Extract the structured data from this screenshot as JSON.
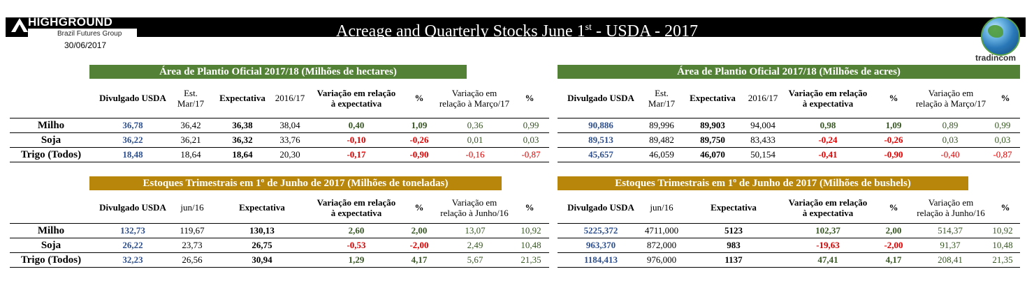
{
  "header": {
    "logo_text": "HIGHGROUND",
    "logo_sub": "Brazil Futures Group",
    "date": "30/06/2017",
    "title_main": "Acreage and Quarterly Stocks June 1",
    "title_sup": "st",
    "title_tail": " - USDA - 2017",
    "right_logo": "tradincom",
    "colors": {
      "bar": "#000000",
      "green": "#538135",
      "gold": "#b8860b",
      "blue": "#2e4f8e",
      "red": "#e00000"
    }
  },
  "rows": [
    "Milho",
    "Soja",
    "Trigo (Todos)"
  ],
  "area_hectares": {
    "title": "Área de Plantio Oficial 2017/18 (Milhões de hectares)",
    "headers": [
      "Divulgado USDA",
      "Est.\nMar/17",
      "Expectativa",
      "2016/17",
      "Variação em relação\nà expectativa",
      "%",
      "Variação em\nrelação à Março/17",
      "%"
    ],
    "data": [
      [
        "36,78",
        "36,42",
        "36,38",
        "38,04",
        "0,40",
        "1,09",
        "0,36",
        "0,99"
      ],
      [
        "36,22",
        "36,21",
        "36,32",
        "33,76",
        "-0,10",
        "-0,26",
        "0,01",
        "0,03"
      ],
      [
        "18,48",
        "18,64",
        "18,64",
        "20,30",
        "-0,17",
        "-0,90",
        "-0,16",
        "-0,87"
      ]
    ]
  },
  "area_acres": {
    "title": "Área de Plantio Oficial 2017/18 (Milhões de acres)",
    "headers": [
      "Divulgado USDA",
      "Est.\nMar/17",
      "Expectativa",
      "2016/17",
      "Variação em relação\nà expectativa",
      "%",
      "Variação em\nrelação à Março/17",
      "%"
    ],
    "data": [
      [
        "90,886",
        "89,996",
        "89,903",
        "94,004",
        "0,98",
        "1,09",
        "0,89",
        "0,99"
      ],
      [
        "89,513",
        "89,482",
        "89,750",
        "83,433",
        "-0,24",
        "-0,26",
        "0,03",
        "0,03"
      ],
      [
        "45,657",
        "46,059",
        "46,070",
        "50,154",
        "-0,41",
        "-0,90",
        "-0,40",
        "-0,87"
      ]
    ]
  },
  "stocks_tons": {
    "title": "Estoques Trimestrais em 1º de Junho de 2017 (Milhões de toneladas)",
    "headers": [
      "Divulgado USDA",
      "jun/16",
      "Expectativa",
      "",
      "Variação em relação\nà expectativa",
      "%",
      "Variação em\nrelação à Junho/16",
      "%"
    ],
    "data": [
      [
        "132,73",
        "119,67",
        "130,13",
        "2,60",
        "2,00",
        "13,07",
        "10,92"
      ],
      [
        "26,22",
        "23,73",
        "26,75",
        "-0,53",
        "-2,00",
        "2,49",
        "10,48"
      ],
      [
        "32,23",
        "26,56",
        "30,94",
        "1,29",
        "4,17",
        "5,67",
        "21,35"
      ]
    ]
  },
  "stocks_bushels": {
    "title": "Estoques Trimestrais em 1º de Junho de 2017 (Milhões de bushels)",
    "headers": [
      "Divulgado USDA",
      "jun/16",
      "Expectativa",
      "",
      "Variação em relação\nà expectativa",
      "%",
      "Variação em\nrelação à Junho/16",
      "%"
    ],
    "data": [
      [
        "5225,372",
        "4711,000",
        "5123",
        "102,37",
        "2,00",
        "514,37",
        "10,92"
      ],
      [
        "963,370",
        "872,000",
        "983",
        "-19,63",
        "-2,00",
        "91,37",
        "10,48"
      ],
      [
        "1184,413",
        "976,000",
        "1137",
        "47,41",
        "4,17",
        "208,41",
        "21,35"
      ]
    ]
  }
}
